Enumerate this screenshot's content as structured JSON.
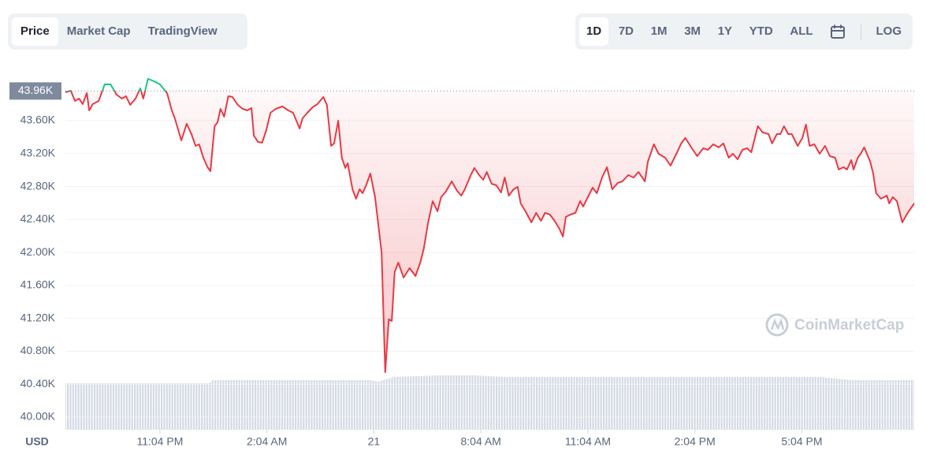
{
  "toolbar": {
    "tabs": [
      "Price",
      "Market Cap",
      "TradingView"
    ],
    "active_tab": 0,
    "ranges": [
      "1D",
      "7D",
      "1M",
      "3M",
      "1Y",
      "YTD",
      "ALL"
    ],
    "active_range": 0,
    "log": "LOG"
  },
  "chart_data": {
    "type": "line",
    "y_label": "USD",
    "watermark": "CoinMarketCap",
    "up_color": "#16c784",
    "down_color": "#ea3943",
    "grid": true,
    "log_scale": false,
    "reference": {
      "value": 43960,
      "label": "43.96K"
    },
    "xlim": [
      0,
      1428
    ],
    "xticks": [
      {
        "value": 159,
        "label": "11:04 PM"
      },
      {
        "value": 339,
        "label": "2:04 AM"
      },
      {
        "value": 519,
        "label": "21"
      },
      {
        "value": 699,
        "label": "8:04 AM"
      },
      {
        "value": 879,
        "label": "11:04 AM"
      },
      {
        "value": 1059,
        "label": "2:04 PM"
      },
      {
        "value": 1239,
        "label": "5:04 PM"
      }
    ],
    "ylim": [
      39850,
      44150
    ],
    "yticks": [
      {
        "value": 40000,
        "label": "40.00K"
      },
      {
        "value": 40400,
        "label": "40.40K"
      },
      {
        "value": 40800,
        "label": "40.80K"
      },
      {
        "value": 41200,
        "label": "41.20K"
      },
      {
        "value": 41600,
        "label": "41.60K"
      },
      {
        "value": 42000,
        "label": "42.00K"
      },
      {
        "value": 42400,
        "label": "42.40K"
      },
      {
        "value": 42800,
        "label": "42.80K"
      },
      {
        "value": 43200,
        "label": "43.20K"
      },
      {
        "value": 43600,
        "label": "43.60K"
      }
    ],
    "x": [
      0,
      9,
      16,
      23,
      29,
      36,
      40,
      46,
      56,
      66,
      76,
      86,
      95,
      102,
      109,
      118,
      126,
      131,
      139,
      149,
      159,
      171,
      179,
      184,
      195,
      204,
      212,
      219,
      225,
      232,
      239,
      244,
      251,
      256,
      261,
      267,
      274,
      281,
      290,
      298,
      306,
      313,
      317,
      324,
      331,
      338,
      345,
      354,
      365,
      375,
      383,
      394,
      399,
      407,
      416,
      424,
      434,
      440,
      447,
      452,
      459,
      465,
      471,
      475,
      483,
      489,
      495,
      500,
      506,
      513,
      521,
      532,
      538,
      544,
      549,
      554,
      560,
      569,
      579,
      589,
      597,
      603,
      610,
      618,
      626,
      632,
      640,
      650,
      659,
      666,
      672,
      682,
      688,
      696,
      703,
      709,
      717,
      725,
      733,
      739,
      746,
      754,
      761,
      766,
      774,
      784,
      792,
      800,
      807,
      815,
      823,
      831,
      837,
      842,
      850,
      858,
      866,
      871,
      879,
      887,
      894,
      903,
      911,
      920,
      929,
      937,
      947,
      956,
      964,
      975,
      980,
      990,
      998,
      1009,
      1018,
      1028,
      1036,
      1043,
      1054,
      1063,
      1073,
      1081,
      1090,
      1099,
      1107,
      1116,
      1123,
      1131,
      1139,
      1147,
      1154,
      1160,
      1165,
      1173,
      1183,
      1189,
      1197,
      1203,
      1209,
      1216,
      1222,
      1232,
      1240,
      1246,
      1252,
      1260,
      1269,
      1278,
      1286,
      1295,
      1301,
      1309,
      1315,
      1322,
      1326,
      1333,
      1338,
      1344,
      1354,
      1359,
      1364,
      1372,
      1382,
      1386,
      1392,
      1399,
      1408,
      1417,
      1428
    ],
    "values": [
      43945,
      43964,
      43839,
      43868,
      43801,
      43935,
      43724,
      43801,
      43839,
      44040,
      44040,
      43916,
      43868,
      43897,
      43791,
      43868,
      43993,
      43868,
      44107,
      44079,
      44040,
      43935,
      43724,
      43629,
      43361,
      43562,
      43437,
      43294,
      43313,
      43150,
      43035,
      42987,
      43533,
      43581,
      43744,
      43648,
      43897,
      43887,
      43791,
      43744,
      43724,
      43753,
      43418,
      43342,
      43332,
      43485,
      43696,
      43744,
      43772,
      43724,
      43696,
      43504,
      43629,
      43696,
      43763,
      43801,
      43887,
      43791,
      43294,
      43323,
      43600,
      43150,
      43026,
      43083,
      42767,
      42652,
      42767,
      42719,
      42815,
      42958,
      42671,
      42001,
      40546,
      41187,
      41168,
      41762,
      41877,
      41695,
      41810,
      41714,
      41877,
      42049,
      42355,
      42623,
      42499,
      42671,
      42738,
      42863,
      42748,
      42690,
      42767,
      42939,
      43026,
      42939,
      42882,
      42977,
      42834,
      42815,
      42728,
      42910,
      42690,
      42767,
      42796,
      42595,
      42499,
      42365,
      42480,
      42384,
      42480,
      42461,
      42384,
      42288,
      42193,
      42432,
      42461,
      42480,
      42623,
      42557,
      42671,
      42786,
      42719,
      42910,
      43035,
      42767,
      42843,
      42863,
      42939,
      42910,
      42977,
      42863,
      43102,
      43313,
      43198,
      43150,
      43054,
      43198,
      43323,
      43390,
      43265,
      43169,
      43265,
      43246,
      43313,
      43275,
      43323,
      43150,
      43198,
      43131,
      43246,
      43265,
      43217,
      43390,
      43533,
      43457,
      43437,
      43323,
      43437,
      43437,
      43533,
      43437,
      43437,
      43294,
      43390,
      43552,
      43294,
      43313,
      43198,
      43294,
      43169,
      43150,
      43006,
      43035,
      43006,
      43121,
      43006,
      43150,
      43198,
      43275,
      43102,
      42958,
      42719,
      42652,
      42690,
      42595,
      42671,
      42623,
      42365,
      42480,
      42595
    ]
  }
}
